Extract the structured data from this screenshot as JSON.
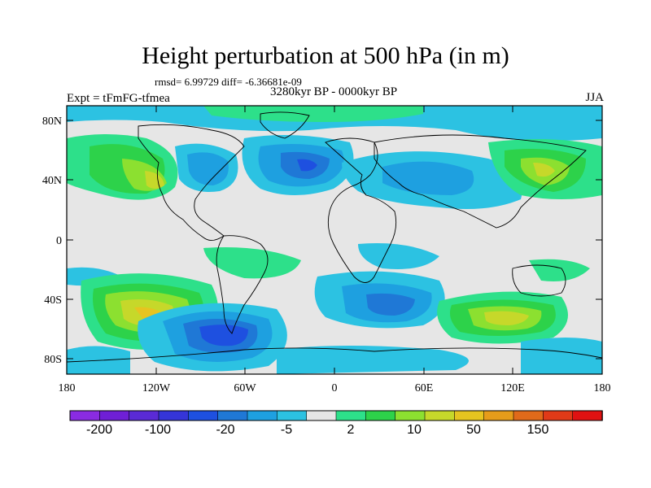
{
  "title": "Height perturbation at 500 hPa (in m)",
  "stats": "rmsd= 6.99729 diff= -6.36681e-09",
  "experiment": "Expt = tFmFG-tfmea",
  "period": "3280kyr BP - 0000kyr BP",
  "season": "JJA",
  "y_axis_labels": [
    "80N",
    "40N",
    "0",
    "40S",
    "80S"
  ],
  "x_axis_labels": [
    "180",
    "120W",
    "60W",
    "0",
    "60E",
    "120E",
    "180"
  ],
  "colorbar": {
    "labels": [
      "-200",
      "-100",
      "-20",
      "-5",
      "2",
      "10",
      "50",
      "150"
    ],
    "colors": [
      "#8a2be2",
      "#6f1fd6",
      "#5a2ad6",
      "#3535d8",
      "#1e50e0",
      "#1f78d6",
      "#1ea0e0",
      "#2cc2e2",
      "#e6e6e6",
      "#2de08a",
      "#2dd24a",
      "#8ce030",
      "#c6d82a",
      "#e6c420",
      "#e69c1a",
      "#e06a1a",
      "#e03a18",
      "#e01212"
    ]
  }
}
